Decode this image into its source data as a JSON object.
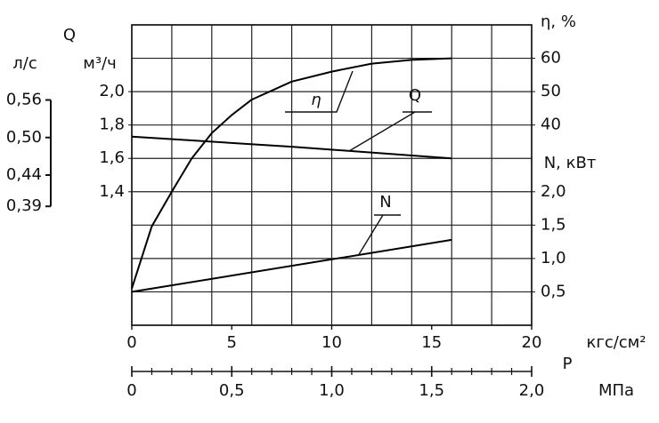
{
  "chart_data": {
    "type": "line",
    "x_label": "P",
    "x_unit": "кгс/см²",
    "x2_unit": "МПа",
    "y_label": "Q",
    "y_unit": "м³/ч",
    "yq_unit": "л/с",
    "y2_label": "η, %",
    "y3_label": "N, кВт",
    "xlim": [
      0,
      20
    ],
    "xticks": [
      0,
      5,
      10,
      15,
      20
    ],
    "x2lim": [
      0,
      2.0
    ],
    "x2ticks": [
      0,
      {
        "value": 0.5,
        "label": "0,5"
      },
      {
        "value": 1.0,
        "label": "1,0"
      },
      {
        "value": 1.5,
        "label": "1,5"
      },
      {
        "value": 2.0,
        "label": "2,0"
      }
    ],
    "ylim": [
      0.6,
      2.4
    ],
    "yticks": [
      {
        "value": 1.4,
        "label": "1,4"
      },
      {
        "value": 1.6,
        "label": "1,6"
      },
      {
        "value": 1.8,
        "label": "1,8"
      },
      {
        "value": 2.0,
        "label": "2,0"
      }
    ],
    "yqlim": [
      0.2,
      0.68
    ],
    "yqticks": [
      {
        "value": 0.39,
        "label": "0,39"
      },
      {
        "value": 0.44,
        "label": "0,44"
      },
      {
        "value": 0.5,
        "label": "0,50"
      },
      {
        "value": 0.56,
        "label": "0,56"
      }
    ],
    "y2lim": [
      -20,
      70
    ],
    "y2ticks": [
      40,
      50,
      60
    ],
    "y3lim": [
      0,
      4.5
    ],
    "y3ticks": [
      {
        "value": 0.5,
        "label": "0,5"
      },
      {
        "value": 1.0,
        "label": "1,0"
      },
      {
        "value": 1.5,
        "label": "1,5"
      },
      {
        "value": 2.0,
        "label": "2,0"
      }
    ],
    "grid": true,
    "series": [
      {
        "name": "η",
        "color": "#000000",
        "axis": "y2",
        "x": [
          0,
          1,
          2,
          3,
          4,
          5,
          6,
          8,
          10,
          12,
          14,
          16
        ],
        "values": [
          -9,
          9.6,
          20,
          30,
          37.6,
          43,
          47.6,
          53,
          56,
          58.4,
          59.5,
          60
        ]
      },
      {
        "name": "Q",
        "color": "#000000",
        "axis": "y",
        "x": [
          0,
          8,
          16
        ],
        "values": [
          1.73,
          1.67,
          1.6
        ]
      },
      {
        "name": "N",
        "color": "#000000",
        "axis": "y3",
        "x": [
          0,
          16
        ],
        "values": [
          0.5,
          1.28
        ]
      }
    ]
  }
}
